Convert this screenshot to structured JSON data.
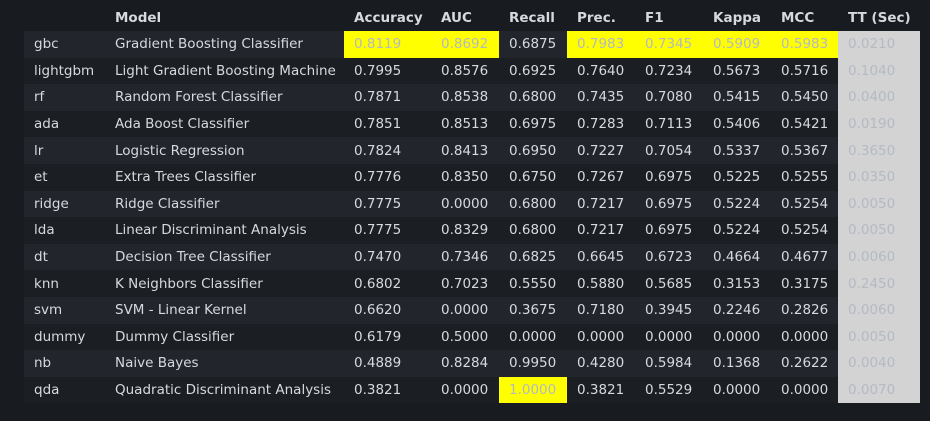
{
  "columns": [
    "",
    "Model",
    "Accuracy",
    "AUC",
    "Recall",
    "Prec.",
    "F1",
    "Kappa",
    "MCC",
    "TT (Sec)"
  ],
  "rows": [
    {
      "id": "gbc",
      "model": "Gradient Boosting Classifier",
      "values": [
        "0.8119",
        "0.8692",
        "0.6875",
        "0.7983",
        "0.7345",
        "0.5909",
        "0.5983",
        "0.0210"
      ],
      "highlight": [
        true,
        true,
        false,
        true,
        true,
        true,
        true,
        false
      ]
    },
    {
      "id": "lightgbm",
      "model": "Light Gradient Boosting Machine",
      "values": [
        "0.7995",
        "0.8576",
        "0.6925",
        "0.7640",
        "0.7234",
        "0.5673",
        "0.5716",
        "0.1040"
      ],
      "highlight": [
        false,
        false,
        false,
        false,
        false,
        false,
        false,
        false
      ]
    },
    {
      "id": "rf",
      "model": "Random Forest Classifier",
      "values": [
        "0.7871",
        "0.8538",
        "0.6800",
        "0.7435",
        "0.7080",
        "0.5415",
        "0.5450",
        "0.0400"
      ],
      "highlight": [
        false,
        false,
        false,
        false,
        false,
        false,
        false,
        false
      ]
    },
    {
      "id": "ada",
      "model": "Ada Boost Classifier",
      "values": [
        "0.7851",
        "0.8513",
        "0.6975",
        "0.7283",
        "0.7113",
        "0.5406",
        "0.5421",
        "0.0190"
      ],
      "highlight": [
        false,
        false,
        false,
        false,
        false,
        false,
        false,
        false
      ]
    },
    {
      "id": "lr",
      "model": "Logistic Regression",
      "values": [
        "0.7824",
        "0.8413",
        "0.6950",
        "0.7227",
        "0.7054",
        "0.5337",
        "0.5367",
        "0.3650"
      ],
      "highlight": [
        false,
        false,
        false,
        false,
        false,
        false,
        false,
        false
      ]
    },
    {
      "id": "et",
      "model": "Extra Trees Classifier",
      "values": [
        "0.7776",
        "0.8350",
        "0.6750",
        "0.7267",
        "0.6975",
        "0.5225",
        "0.5255",
        "0.0350"
      ],
      "highlight": [
        false,
        false,
        false,
        false,
        false,
        false,
        false,
        false
      ]
    },
    {
      "id": "ridge",
      "model": "Ridge Classifier",
      "values": [
        "0.7775",
        "0.0000",
        "0.6800",
        "0.7217",
        "0.6975",
        "0.5224",
        "0.5254",
        "0.0050"
      ],
      "highlight": [
        false,
        false,
        false,
        false,
        false,
        false,
        false,
        false
      ]
    },
    {
      "id": "lda",
      "model": "Linear Discriminant Analysis",
      "values": [
        "0.7775",
        "0.8329",
        "0.6800",
        "0.7217",
        "0.6975",
        "0.5224",
        "0.5254",
        "0.0050"
      ],
      "highlight": [
        false,
        false,
        false,
        false,
        false,
        false,
        false,
        false
      ]
    },
    {
      "id": "dt",
      "model": "Decision Tree Classifier",
      "values": [
        "0.7470",
        "0.7346",
        "0.6825",
        "0.6645",
        "0.6723",
        "0.4664",
        "0.4677",
        "0.0060"
      ],
      "highlight": [
        false,
        false,
        false,
        false,
        false,
        false,
        false,
        false
      ]
    },
    {
      "id": "knn",
      "model": "K Neighbors Classifier",
      "values": [
        "0.6802",
        "0.7023",
        "0.5550",
        "0.5880",
        "0.5685",
        "0.3153",
        "0.3175",
        "0.2450"
      ],
      "highlight": [
        false,
        false,
        false,
        false,
        false,
        false,
        false,
        false
      ]
    },
    {
      "id": "svm",
      "model": "SVM - Linear Kernel",
      "values": [
        "0.6620",
        "0.0000",
        "0.3675",
        "0.7180",
        "0.3945",
        "0.2246",
        "0.2826",
        "0.0060"
      ],
      "highlight": [
        false,
        false,
        false,
        false,
        false,
        false,
        false,
        false
      ]
    },
    {
      "id": "dummy",
      "model": "Dummy Classifier",
      "values": [
        "0.6179",
        "0.5000",
        "0.0000",
        "0.0000",
        "0.0000",
        "0.0000",
        "0.0000",
        "0.0050"
      ],
      "highlight": [
        false,
        false,
        false,
        false,
        false,
        false,
        false,
        false
      ]
    },
    {
      "id": "nb",
      "model": "Naive Bayes",
      "values": [
        "0.4889",
        "0.8284",
        "0.9950",
        "0.4280",
        "0.5984",
        "0.1368",
        "0.2622",
        "0.0040"
      ],
      "highlight": [
        false,
        false,
        false,
        false,
        false,
        false,
        false,
        false
      ]
    },
    {
      "id": "qda",
      "model": "Quadratic Discriminant Analysis",
      "values": [
        "0.3821",
        "0.0000",
        "1.0000",
        "0.3821",
        "0.5529",
        "0.0000",
        "0.0000",
        "0.0070"
      ],
      "highlight": [
        false,
        false,
        true,
        false,
        false,
        false,
        false,
        false
      ]
    }
  ],
  "colors": {
    "highlight": "#ffff00",
    "tt_column_bg": "#d3d3d3",
    "background": "#181b20"
  }
}
